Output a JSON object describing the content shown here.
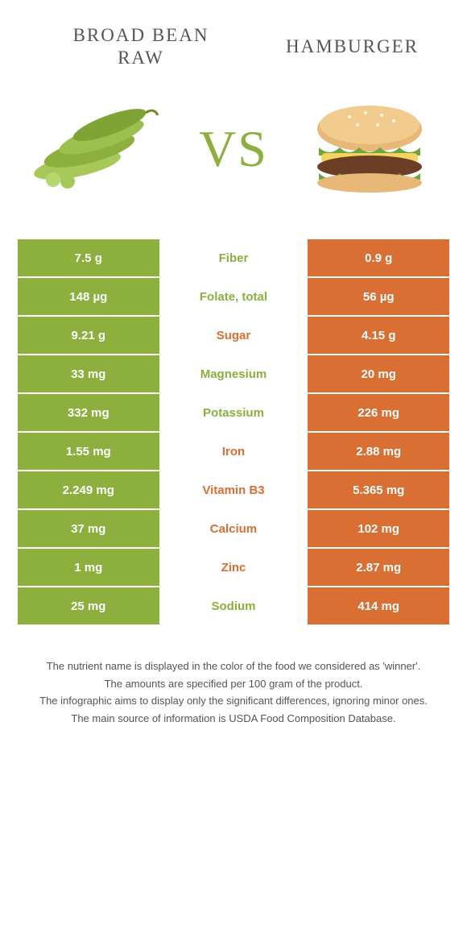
{
  "colors": {
    "left_food": "#8CAF3E",
    "right_food": "#D96F32",
    "vs": "#8CAF3E",
    "title": "#555555",
    "footer": "#555555"
  },
  "titles": {
    "left_line1": "BROAD BEAN",
    "left_line2": "RAW",
    "right": "HAMBURGER",
    "vs": "VS"
  },
  "rows": [
    {
      "name": "Fiber",
      "left": "7.5 g",
      "right": "0.9 g",
      "winner": "left"
    },
    {
      "name": "Folate, total",
      "left": "148 µg",
      "right": "56 µg",
      "winner": "left"
    },
    {
      "name": "Sugar",
      "left": "9.21 g",
      "right": "4.15 g",
      "winner": "right"
    },
    {
      "name": "Magnesium",
      "left": "33 mg",
      "right": "20 mg",
      "winner": "left"
    },
    {
      "name": "Potassium",
      "left": "332 mg",
      "right": "226 mg",
      "winner": "left"
    },
    {
      "name": "Iron",
      "left": "1.55 mg",
      "right": "2.88 mg",
      "winner": "right"
    },
    {
      "name": "Vitamin B3",
      "left": "2.249 mg",
      "right": "5.365 mg",
      "winner": "right"
    },
    {
      "name": "Calcium",
      "left": "37 mg",
      "right": "102 mg",
      "winner": "right"
    },
    {
      "name": "Zinc",
      "left": "1 mg",
      "right": "2.87 mg",
      "winner": "right"
    },
    {
      "name": "Sodium",
      "left": "25 mg",
      "right": "414 mg",
      "winner": "left"
    }
  ],
  "footer": {
    "line1": "The nutrient name is displayed in the color of the food we considered as 'winner'.",
    "line2": "The amounts are specified per 100 gram of the product.",
    "line3": "The infographic aims to display only the significant differences, ignoring minor ones.",
    "line4": "The main source of information is USDA Food Composition Database."
  }
}
